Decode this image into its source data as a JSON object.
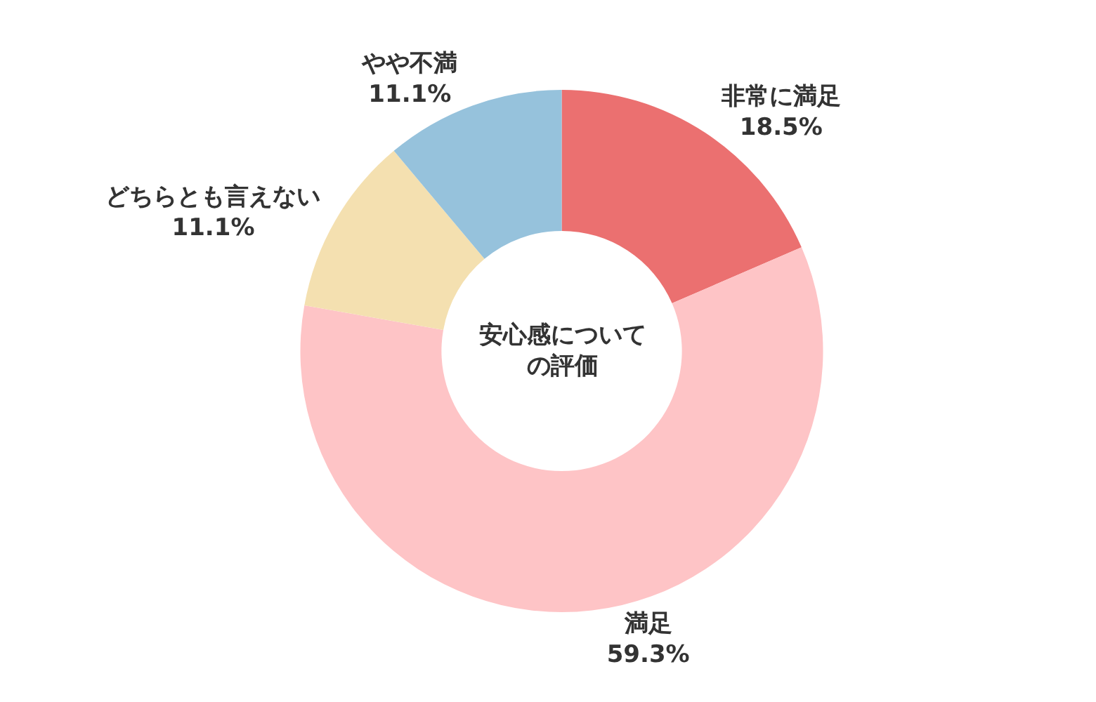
{
  "chart_data": {
    "type": "donut",
    "title": "安心感についての評価",
    "categories": [
      "非常に満足",
      "満足",
      "どちらとも言えない",
      "やや不満"
    ],
    "values": [
      18.5,
      59.3,
      11.1,
      11.1
    ],
    "value_labels": [
      "18.5%",
      "59.3%",
      "11.1%",
      "11.1%"
    ],
    "colors": [
      "#eb7070",
      "#fec4c6",
      "#f4e0b0",
      "#96c2dc"
    ],
    "legend": false
  }
}
